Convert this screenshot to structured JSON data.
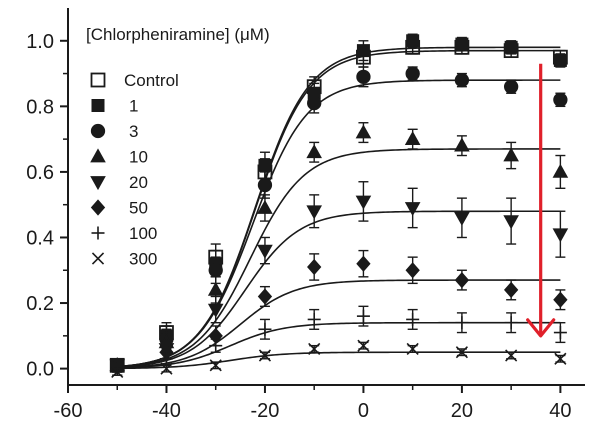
{
  "chart_data": {
    "type": "scatter",
    "title": "",
    "xlabel": "",
    "ylabel": "",
    "xlim": [
      -60,
      45
    ],
    "ylim": [
      -0.05,
      1.1
    ],
    "x_ticks": [
      -60,
      -40,
      -20,
      0,
      20,
      40
    ],
    "x_tick_labels": [
      "-60",
      "-40",
      "-20",
      "0",
      "20",
      "40"
    ],
    "y_ticks": [
      0.0,
      0.2,
      0.4,
      0.6,
      0.8,
      1.0
    ],
    "y_tick_labels": [
      "0.0",
      "0.2",
      "0.4",
      "0.6",
      "0.8",
      "1.0"
    ],
    "legend_title": "[Chlorpheniramine] (μM)",
    "legend_position": "top-left",
    "x": [
      -50,
      -40,
      -30,
      -20,
      -10,
      0,
      10,
      20,
      30,
      40
    ],
    "series": [
      {
        "name": "Control",
        "marker": "open-square",
        "values": [
          0.01,
          0.11,
          0.34,
          0.6,
          0.86,
          0.95,
          0.98,
          0.98,
          0.97,
          0.95
        ],
        "errors": [
          0.02,
          0.03,
          0.04,
          0.04,
          0.03,
          0.03,
          0.02,
          0.02,
          0.02,
          0.02
        ],
        "fit_top": 0.97,
        "fit_vhalf": -22
      },
      {
        "name": "1",
        "marker": "filled-square",
        "values": [
          0.01,
          0.1,
          0.32,
          0.62,
          0.84,
          0.97,
          1.0,
          0.99,
          0.98,
          0.94
        ],
        "errors": [
          0.02,
          0.03,
          0.04,
          0.04,
          0.03,
          0.03,
          0.02,
          0.02,
          0.02,
          0.02
        ],
        "fit_top": 0.98,
        "fit_vhalf": -22
      },
      {
        "name": "3",
        "marker": "filled-circle",
        "values": [
          0.01,
          0.09,
          0.3,
          0.56,
          0.81,
          0.89,
          0.9,
          0.88,
          0.86,
          0.82
        ],
        "errors": [
          0.02,
          0.03,
          0.04,
          0.04,
          0.03,
          0.03,
          0.02,
          0.02,
          0.02,
          0.02
        ],
        "fit_top": 0.88,
        "fit_vhalf": -22.5
      },
      {
        "name": "10",
        "marker": "filled-triangle-up",
        "values": [
          0.01,
          0.08,
          0.24,
          0.49,
          0.66,
          0.72,
          0.7,
          0.68,
          0.65,
          0.6
        ],
        "errors": [
          0.02,
          0.03,
          0.04,
          0.04,
          0.03,
          0.03,
          0.03,
          0.03,
          0.04,
          0.05
        ],
        "fit_top": 0.67,
        "fit_vhalf": -23
      },
      {
        "name": "20",
        "marker": "filled-triangle-down",
        "values": [
          0.01,
          0.06,
          0.18,
          0.36,
          0.48,
          0.51,
          0.49,
          0.46,
          0.45,
          0.41
        ],
        "errors": [
          0.02,
          0.03,
          0.04,
          0.04,
          0.05,
          0.06,
          0.06,
          0.06,
          0.07,
          0.07
        ],
        "fit_top": 0.48,
        "fit_vhalf": -24
      },
      {
        "name": "50",
        "marker": "filled-diamond",
        "values": [
          0.01,
          0.05,
          0.1,
          0.22,
          0.31,
          0.32,
          0.3,
          0.27,
          0.24,
          0.21
        ],
        "errors": [
          0.02,
          0.02,
          0.03,
          0.03,
          0.04,
          0.04,
          0.04,
          0.03,
          0.03,
          0.03
        ],
        "fit_top": 0.27,
        "fit_vhalf": -25
      },
      {
        "name": "100",
        "marker": "plus",
        "values": [
          0.0,
          0.03,
          0.07,
          0.12,
          0.15,
          0.16,
          0.15,
          0.14,
          0.14,
          0.11
        ],
        "errors": [
          0.02,
          0.02,
          0.02,
          0.03,
          0.03,
          0.03,
          0.03,
          0.03,
          0.03,
          0.03
        ],
        "fit_top": 0.14,
        "fit_vhalf": -27
      },
      {
        "name": "300",
        "marker": "cross",
        "values": [
          -0.01,
          0.0,
          0.01,
          0.04,
          0.06,
          0.07,
          0.06,
          0.05,
          0.04,
          0.03
        ],
        "errors": [
          0.01,
          0.01,
          0.01,
          0.01,
          0.01,
          0.01,
          0.01,
          0.01,
          0.01,
          0.01
        ],
        "fit_top": 0.05,
        "fit_vhalf": -27
      },
      {
        "name": "",
        "marker": "none",
        "values": [],
        "errors": [],
        "fit_top": 0,
        "fit_vhalf": 0
      }
    ],
    "fit_slope": 5.5,
    "annotation": {
      "type": "arrow",
      "color": "#e0202a",
      "x": 36,
      "y_start": 0.93,
      "y_end": 0.1,
      "meaning": "decrease with increasing concentration"
    }
  },
  "colors": {
    "ink": "#1a1a1a",
    "arrow": "#e0202a",
    "background": "#ffffff"
  }
}
